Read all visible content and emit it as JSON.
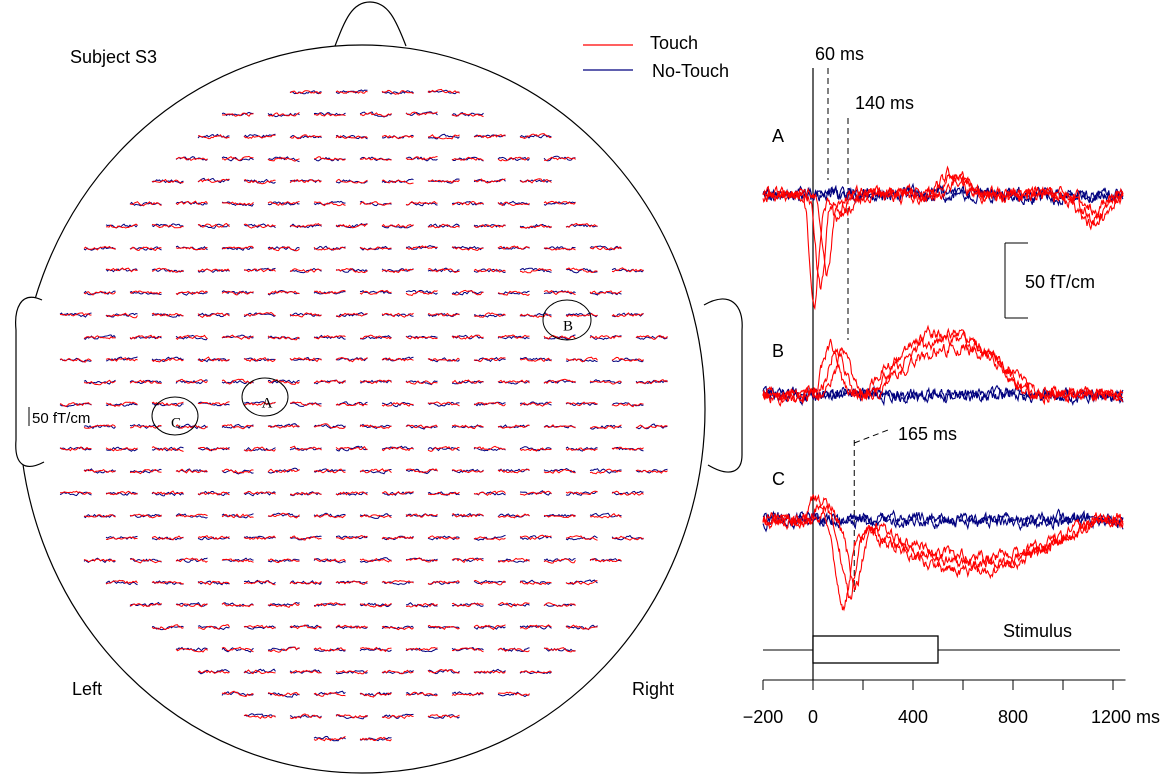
{
  "chart_data": {
    "type": "meg-figure",
    "title": "Subject S3",
    "series": [
      {
        "name": "Touch",
        "color": "#ff0000"
      },
      {
        "name": "No-Touch",
        "color": "#00007f"
      }
    ],
    "head_labels": {
      "left": "Left",
      "right": "Right"
    },
    "head_scale_label": "50 fT/cm",
    "trace_scale_label": "50 fT/cm",
    "channels": [
      "A",
      "B",
      "C"
    ],
    "annotations": [
      {
        "value": 60,
        "label": "60 ms"
      },
      {
        "value": 140,
        "label": "140 ms"
      },
      {
        "value": 165,
        "label": "165 ms"
      }
    ],
    "stimulus": {
      "label": "Stimulus",
      "start": 0,
      "end": 500
    },
    "xlim": [
      -200,
      1250
    ],
    "xticks": [
      {
        "value": -200,
        "label": "−200"
      },
      0,
      400,
      800,
      {
        "value": 1200,
        "label": "1200 ms"
      }
    ],
    "xminor": [
      200,
      600,
      1000
    ]
  }
}
